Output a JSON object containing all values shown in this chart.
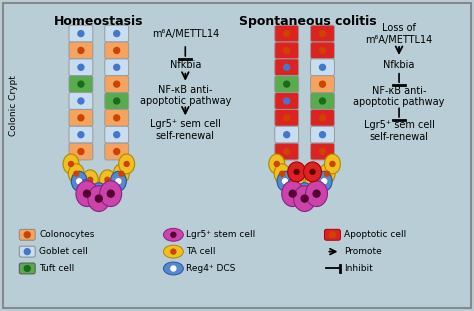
{
  "background_color": "#b8cdd6",
  "border_color": "#888888",
  "title_homeostasis": "Homeostasis",
  "title_colitis": "Spontaneous colitis",
  "colonic_crypt_label": "Colonic Crypt",
  "pathway_text_homeostasis": [
    "m⁶A/METTL14",
    "Nfkbia",
    "NF-κB anti-\napoptotic pathway",
    "Lgr5⁺ sem cell\nself-renewal"
  ],
  "pathway_text_colitis": [
    "Loss of\nm⁶A/METTL14",
    "Nfkbia",
    "NF-κB anti-\napoptotic pathway",
    "Lgr5⁺ sem cell\nself-renewal"
  ],
  "colonocyte_color": "#f4a460",
  "goblet_color": "#c8ddf0",
  "tuft_color": "#5aaa50",
  "red_color": "#dd2222",
  "lgr5_color": "#cc44aa",
  "ta_color": "#f0c020",
  "reg4_color": "#5588cc",
  "dot_orange": "#cc4400",
  "dot_blue": "#4477cc",
  "dot_green": "#1a6c1a",
  "dot_white": "#ffffff",
  "dot_purple": "#550033"
}
